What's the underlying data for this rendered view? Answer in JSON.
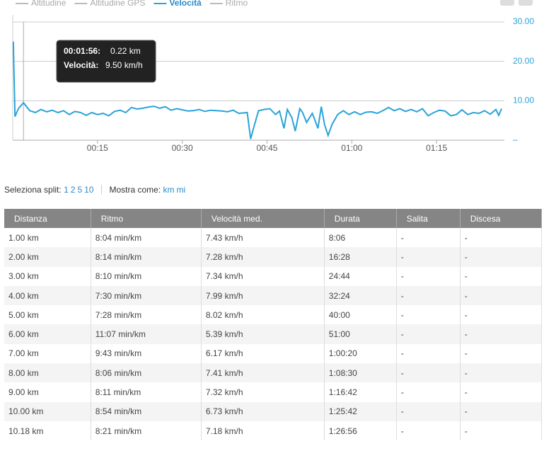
{
  "chart_data": {
    "type": "line",
    "legend": [
      {
        "name": "Altitudine",
        "color": "#bbbbbb"
      },
      {
        "name": "Altitudine GPS",
        "color": "#bbbbbb"
      }
    ],
    "legend_after": [
      {
        "name": "Ritmo",
        "color": "#bbbbbb"
      }
    ],
    "x": [
      0.1,
      0.4,
      1.0,
      1.9,
      3,
      4,
      5,
      6,
      7,
      8,
      9,
      10,
      11,
      12,
      13,
      14,
      15,
      16,
      17,
      18,
      19,
      20,
      21,
      22,
      23,
      24,
      25,
      26,
      27,
      28,
      29,
      30,
      31,
      32,
      33,
      34,
      35,
      36,
      37,
      38,
      39,
      40,
      41.5,
      42.1,
      42.6,
      43.5,
      44.5,
      45.5,
      46.5,
      47.2,
      48,
      48.6,
      49.4,
      50,
      50.8,
      51.3,
      52,
      53,
      53.5,
      54,
      54.6,
      55.2,
      55.8,
      56.5,
      57.5,
      58.5,
      59.5,
      60.5,
      61.5,
      62.5,
      63.5,
      64.5,
      65.5,
      66.5,
      67.5,
      68.5,
      69.5,
      70.5,
      71.5,
      72.5,
      73.5,
      74.5,
      75.5,
      76.5,
      77.5,
      78.5,
      79.5,
      80.5,
      81.5,
      82.5,
      83.5,
      84.5,
      85.5,
      86,
      86.5
    ],
    "series": [
      {
        "name": "Velocità",
        "color": "#2aa3d8",
        "values": [
          25,
          6,
          8,
          9.5,
          7.5,
          7,
          7.8,
          7.2,
          7.6,
          7,
          7.5,
          6.5,
          7.3,
          7,
          6.3,
          7,
          6.5,
          6.8,
          6.2,
          7.3,
          7.6,
          7,
          8.3,
          7.9,
          8.1,
          8.4,
          8.6,
          8.1,
          8.5,
          7.6,
          8,
          7.7,
          7.4,
          7.5,
          7.8,
          7.3,
          7.6,
          7.5,
          7.4,
          7.2,
          7.6,
          6.8,
          7,
          0.3,
          3,
          7.5,
          7.8,
          8,
          6.5,
          7.4,
          3,
          7.8,
          5.7,
          2.3,
          8,
          7,
          4.5,
          6.8,
          5,
          3,
          8.5,
          3.8,
          1.2,
          4,
          6.5,
          7.5,
          6.5,
          7.2,
          6.5,
          7.1,
          7.2,
          6.8,
          7.5,
          8.3,
          7.5,
          8,
          7.3,
          7.8,
          7.2,
          8,
          6.2,
          7,
          7.6,
          7.4,
          6.2,
          6.5,
          7.7,
          6.5,
          7,
          6.8,
          7.5,
          6.6,
          7.8,
          6.3,
          8
        ]
      }
    ],
    "xlim": [
      0,
      87
    ],
    "xticks": [
      {
        "value": 15,
        "label": "00:15"
      },
      {
        "value": 30,
        "label": "00:30"
      },
      {
        "value": 45,
        "label": "00:45"
      },
      {
        "value": 60,
        "label": "01:00"
      },
      {
        "value": 75,
        "label": "01:15"
      }
    ],
    "ylim": [
      0,
      30
    ],
    "yticks": [
      {
        "value": 0,
        "label": "–"
      },
      {
        "value": 10,
        "label": "10.00"
      },
      {
        "value": 20,
        "label": "20.00"
      },
      {
        "value": 30,
        "label": "30.00"
      }
    ],
    "grid": true,
    "crosshair_x": 1.9,
    "tooltip": {
      "time": "00:01:56:",
      "distance": "0.22 km",
      "speed_label": "Velocità:",
      "speed": "9.50 km/h"
    }
  },
  "controls": {
    "split_label": "Seleziona split:",
    "splits": [
      "1",
      "2",
      "5",
      "10"
    ],
    "units_label": "Mostra come:",
    "units": [
      "km",
      "mi"
    ]
  },
  "table": {
    "headers": [
      "Distanza",
      "Ritmo",
      "Velocità med.",
      "Durata",
      "Salita",
      "Discesa"
    ],
    "rows": [
      [
        "1.00 km",
        "8:04 min/km",
        "7.43 km/h",
        "8:06",
        "-",
        "-"
      ],
      [
        "2.00 km",
        "8:14 min/km",
        "7.28 km/h",
        "16:28",
        "-",
        "-"
      ],
      [
        "3.00 km",
        "8:10 min/km",
        "7.34 km/h",
        "24:44",
        "-",
        "-"
      ],
      [
        "4.00 km",
        "7:30 min/km",
        "7.99 km/h",
        "32:24",
        "-",
        "-"
      ],
      [
        "5.00 km",
        "7:28 min/km",
        "8.02 km/h",
        "40:00",
        "-",
        "-"
      ],
      [
        "6.00 km",
        "11:07 min/km",
        "5.39 km/h",
        "51:00",
        "-",
        "-"
      ],
      [
        "7.00 km",
        "9:43 min/km",
        "6.17 km/h",
        "1:00:20",
        "-",
        "-"
      ],
      [
        "8.00 km",
        "8:06 min/km",
        "7.41 km/h",
        "1:08:30",
        "-",
        "-"
      ],
      [
        "9.00 km",
        "8:11 min/km",
        "7.32 km/h",
        "1:16:42",
        "-",
        "-"
      ],
      [
        "10.00 km",
        "8:54 min/km",
        "6.73 km/h",
        "1:25:42",
        "-",
        "-"
      ],
      [
        "10.18 km",
        "8:21 min/km",
        "7.18 km/h",
        "1:26:56",
        "-",
        "-"
      ]
    ]
  }
}
